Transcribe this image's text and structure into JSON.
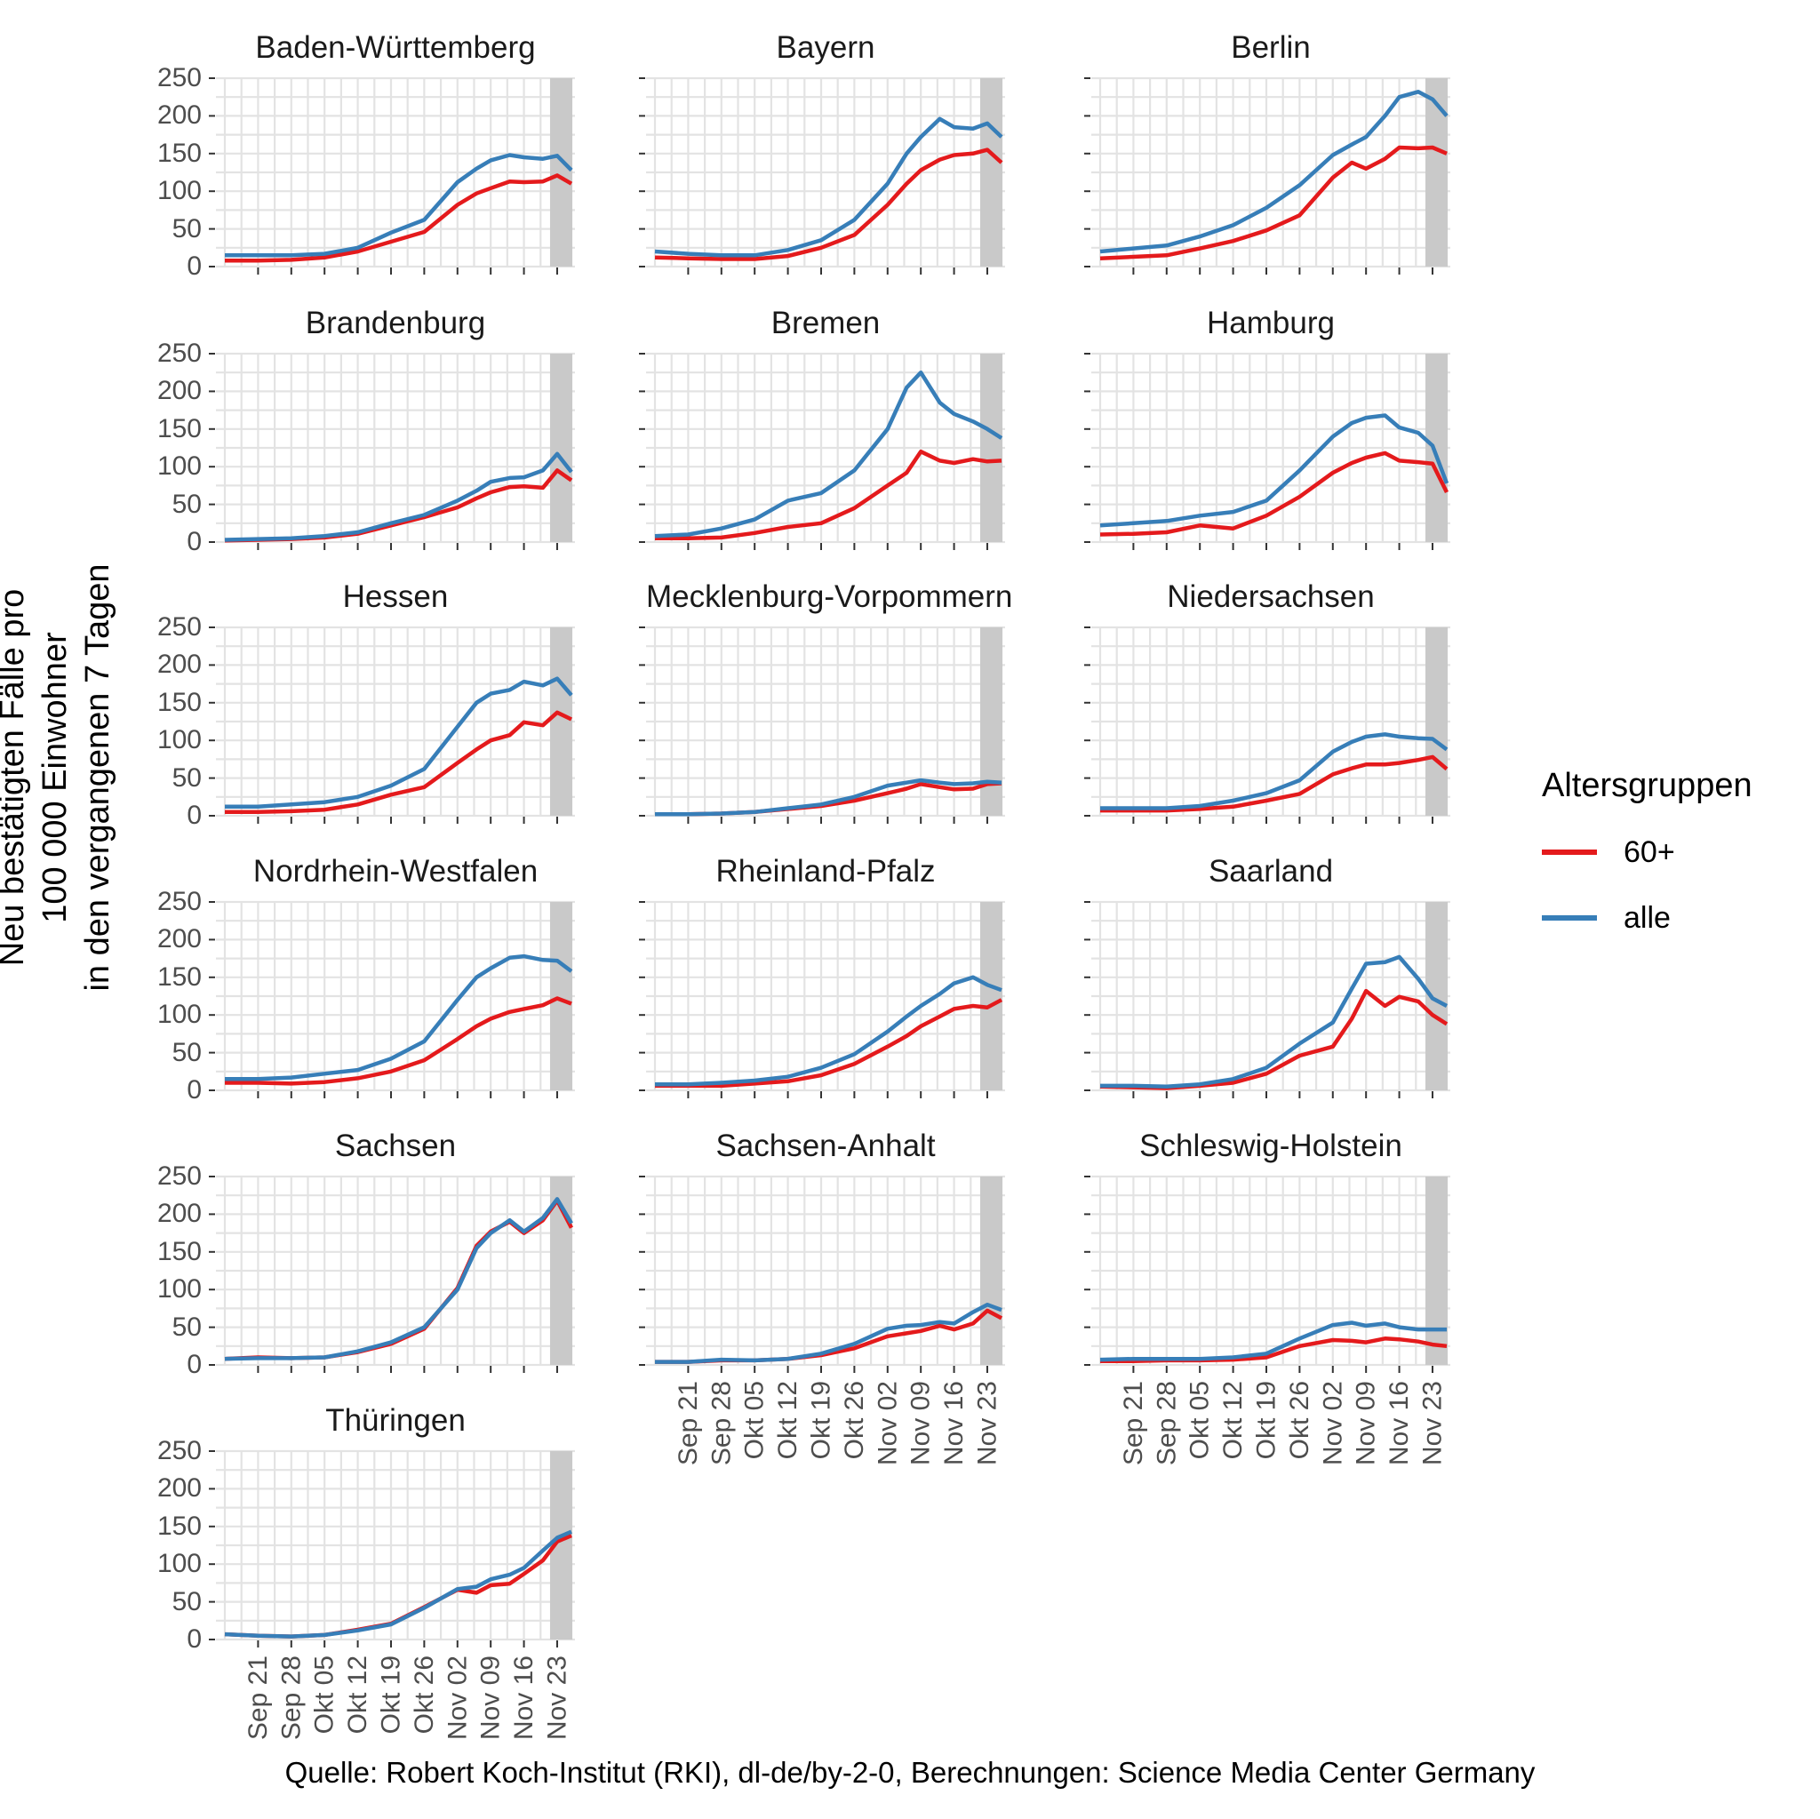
{
  "ylabel": [
    "Neu bestätigten Fälle pro",
    "100 000 Einwohner",
    "in den vergangenen 7 Tagen"
  ],
  "caption": "Quelle: Robert Koch-Institut (RKI), dl-de/by-2-0, Berechnungen: Science Media Center Germany",
  "legend": {
    "title": "Altersgruppen",
    "items": [
      {
        "label": "60+",
        "color": "#e41a1c"
      },
      {
        "label": "alle",
        "color": "#377eb8"
      }
    ]
  },
  "colors": {
    "red": "#e41a1c",
    "blue": "#377eb8",
    "gridline": "#e3e3e3",
    "shaded_band": "#c9c9c9",
    "tick_mark": "#333333",
    "tick_label": "#4d4d4d"
  },
  "chart_data": {
    "type": "line",
    "title": "",
    "facet_layout": "3 columns x 6 rows, shared axes",
    "y_axis": {
      "ticks": [
        0,
        50,
        100,
        150,
        200,
        250
      ],
      "range": [
        0,
        250
      ],
      "grid_step_minor": 25
    },
    "x_axis": {
      "tick_labels": [
        "Sep 21",
        "Sep 28",
        "Okt 05",
        "Okt 12",
        "Okt 19",
        "Okt 26",
        "Nov 02",
        "Nov 09",
        "Nov 16",
        "Nov 23"
      ],
      "tick_days": [
        7,
        14,
        21,
        28,
        35,
        42,
        49,
        56,
        63,
        70
      ],
      "domain_days": [
        0,
        73
      ],
      "day_zero_label": "Sep 14",
      "grid_step_days": 3.5
    },
    "shaded_band_days": [
      68.5,
      73.2
    ],
    "sample_days": [
      0,
      7,
      14,
      21,
      28,
      35,
      42,
      49,
      53,
      56,
      60,
      63,
      67,
      70,
      73
    ],
    "series_meta": [
      {
        "id": "60plus",
        "label": "60+",
        "color": "#e41a1c"
      },
      {
        "id": "alle",
        "label": "alle",
        "color": "#377eb8"
      }
    ],
    "facets": [
      {
        "name": "Baden-Württemberg",
        "alle": [
          15,
          15,
          15,
          17,
          25,
          45,
          62,
          112,
          130,
          141,
          148,
          145,
          143,
          147,
          128
        ],
        "60plus": [
          8,
          8,
          9,
          12,
          20,
          33,
          46,
          82,
          97,
          104,
          113,
          112,
          113,
          121,
          110
        ]
      },
      {
        "name": "Bayern",
        "alle": [
          20,
          17,
          15,
          15,
          22,
          35,
          62,
          110,
          150,
          172,
          196,
          185,
          183,
          190,
          172
        ],
        "60plus": [
          12,
          11,
          10,
          10,
          14,
          25,
          42,
          82,
          110,
          128,
          142,
          148,
          150,
          155,
          138
        ]
      },
      {
        "name": "Berlin",
        "alle": [
          20,
          24,
          28,
          40,
          55,
          78,
          108,
          148,
          162,
          172,
          200,
          225,
          232,
          222,
          200
        ],
        "60plus": [
          11,
          13,
          15,
          24,
          34,
          48,
          68,
          118,
          138,
          130,
          143,
          158,
          157,
          158,
          150
        ]
      },
      {
        "name": "Brandenburg",
        "alle": [
          3,
          4,
          5,
          8,
          13,
          25,
          36,
          55,
          68,
          80,
          85,
          86,
          95,
          117,
          93
        ],
        "60plus": [
          2,
          3,
          4,
          6,
          11,
          22,
          33,
          46,
          58,
          66,
          73,
          74,
          72,
          95,
          82
        ]
      },
      {
        "name": "Bremen",
        "alle": [
          8,
          10,
          18,
          30,
          55,
          65,
          95,
          150,
          205,
          225,
          185,
          170,
          160,
          150,
          138
        ],
        "60plus": [
          5,
          5,
          6,
          12,
          20,
          25,
          45,
          75,
          92,
          120,
          108,
          105,
          110,
          107,
          108
        ]
      },
      {
        "name": "Hamburg",
        "alle": [
          22,
          25,
          28,
          35,
          40,
          55,
          95,
          140,
          158,
          165,
          168,
          152,
          145,
          128,
          78
        ],
        "60plus": [
          10,
          11,
          13,
          22,
          18,
          35,
          60,
          92,
          105,
          112,
          118,
          108,
          106,
          104,
          66
        ]
      },
      {
        "name": "Hessen",
        "alle": [
          12,
          12,
          15,
          18,
          25,
          40,
          62,
          118,
          150,
          162,
          167,
          178,
          173,
          182,
          160
        ],
        "60plus": [
          5,
          5,
          6,
          8,
          15,
          28,
          38,
          70,
          88,
          100,
          107,
          124,
          120,
          137,
          128
        ]
      },
      {
        "name": "Mecklenburg-Vorpommern",
        "alle": [
          2,
          2,
          3,
          5,
          10,
          15,
          25,
          40,
          44,
          47,
          44,
          42,
          43,
          45,
          44
        ],
        "60plus": [
          2,
          2,
          3,
          5,
          9,
          13,
          20,
          30,
          36,
          42,
          38,
          35,
          36,
          42,
          43
        ]
      },
      {
        "name": "Niedersachsen",
        "alle": [
          10,
          10,
          10,
          13,
          20,
          30,
          47,
          85,
          98,
          105,
          108,
          105,
          103,
          102,
          88
        ],
        "60plus": [
          7,
          7,
          7,
          9,
          12,
          20,
          29,
          55,
          63,
          68,
          68,
          70,
          74,
          78,
          62
        ]
      },
      {
        "name": "Nordrhein-Westfalen",
        "alle": [
          15,
          15,
          17,
          22,
          27,
          42,
          65,
          120,
          150,
          162,
          176,
          178,
          173,
          172,
          158
        ],
        "60plus": [
          10,
          10,
          9,
          11,
          16,
          25,
          40,
          68,
          85,
          95,
          104,
          108,
          113,
          122,
          115
        ]
      },
      {
        "name": "Rheinland-Pfalz",
        "alle": [
          8,
          8,
          10,
          13,
          18,
          30,
          48,
          78,
          98,
          112,
          128,
          142,
          150,
          140,
          133
        ],
        "60plus": [
          6,
          6,
          6,
          9,
          12,
          20,
          35,
          58,
          72,
          85,
          98,
          108,
          112,
          110,
          120
        ]
      },
      {
        "name": "Saarland",
        "alle": [
          6,
          6,
          5,
          8,
          15,
          30,
          62,
          90,
          135,
          168,
          170,
          177,
          148,
          122,
          112
        ],
        "60plus": [
          5,
          4,
          3,
          6,
          10,
          22,
          46,
          58,
          95,
          132,
          112,
          124,
          118,
          100,
          88
        ]
      },
      {
        "name": "Sachsen",
        "alle": [
          8,
          9,
          9,
          10,
          18,
          30,
          50,
          100,
          155,
          175,
          192,
          177,
          195,
          220,
          188
        ],
        "60plus": [
          8,
          10,
          9,
          10,
          17,
          28,
          48,
          102,
          158,
          177,
          190,
          175,
          192,
          218,
          182
        ]
      },
      {
        "name": "Sachsen-Anhalt",
        "alle": [
          4,
          4,
          7,
          6,
          8,
          15,
          28,
          48,
          52,
          53,
          57,
          55,
          70,
          80,
          73
        ],
        "60plus": [
          4,
          4,
          6,
          6,
          8,
          13,
          22,
          38,
          42,
          45,
          52,
          47,
          55,
          72,
          62
        ]
      },
      {
        "name": "Schleswig-Holstein",
        "alle": [
          7,
          8,
          8,
          8,
          10,
          15,
          35,
          53,
          56,
          52,
          55,
          50,
          47,
          47,
          47
        ],
        "60plus": [
          5,
          5,
          6,
          6,
          7,
          10,
          25,
          33,
          32,
          30,
          35,
          34,
          31,
          27,
          25
        ]
      },
      {
        "name": "Thüringen",
        "alle": [
          7,
          5,
          4,
          6,
          12,
          20,
          42,
          67,
          70,
          80,
          86,
          95,
          118,
          135,
          143
        ],
        "60plus": [
          7,
          5,
          4,
          6,
          13,
          21,
          43,
          66,
          62,
          72,
          74,
          87,
          105,
          130,
          138
        ]
      }
    ]
  }
}
